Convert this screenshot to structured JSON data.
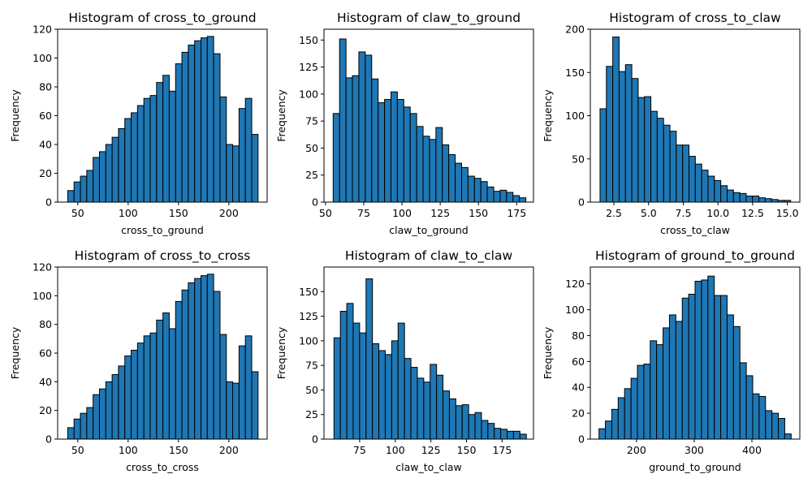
{
  "colors": {
    "bar_fill": "#1f77b4",
    "bar_edge": "#000000",
    "background": "#ffffff"
  },
  "chart_data": [
    {
      "type": "bar",
      "title": "Histogram of cross_to_ground",
      "xlabel": "cross_to_ground",
      "ylabel": "Frequency",
      "bin_start": 40,
      "bin_width": 6.3,
      "bins": 30,
      "values": [
        8,
        14,
        18,
        22,
        31,
        35,
        40,
        45,
        51,
        58,
        62,
        67,
        72,
        74,
        83,
        88,
        77,
        96,
        104,
        109,
        112,
        114,
        115,
        103,
        73,
        40,
        39,
        65,
        72,
        47
      ],
      "xlim": [
        30,
        238
      ],
      "ylim": [
        0,
        120
      ],
      "xticks": [
        50,
        100,
        150,
        200
      ],
      "yticks": [
        0,
        20,
        40,
        60,
        80,
        100,
        120
      ],
      "grid": false
    },
    {
      "type": "bar",
      "title": "Histogram of claw_to_ground",
      "xlabel": "claw_to_ground",
      "ylabel": "Frequency",
      "bin_start": 55,
      "bin_width": 4.2,
      "bins": 30,
      "values": [
        82,
        151,
        115,
        117,
        139,
        136,
        114,
        92,
        95,
        102,
        95,
        88,
        82,
        70,
        61,
        58,
        69,
        53,
        44,
        36,
        32,
        24,
        22,
        19,
        14,
        10,
        11,
        9,
        6,
        4
      ],
      "xlim": [
        49,
        186
      ],
      "ylim": [
        0,
        160
      ],
      "xticks": [
        50,
        75,
        100,
        125,
        150,
        175
      ],
      "yticks": [
        0,
        25,
        50,
        75,
        100,
        125,
        150
      ],
      "grid": false
    },
    {
      "type": "bar",
      "title": "Histogram of cross_to_claw",
      "xlabel": "cross_to_claw",
      "ylabel": "Frequency",
      "bin_start": 1.5,
      "bin_width": 0.458,
      "bins": 30,
      "values": [
        108,
        157,
        191,
        151,
        159,
        143,
        121,
        122,
        105,
        97,
        89,
        82,
        66,
        66,
        53,
        44,
        37,
        30,
        25,
        19,
        14,
        11,
        10,
        7,
        7,
        5,
        4,
        3,
        2,
        2
      ],
      "xlim": [
        0.8,
        15.9
      ],
      "ylim": [
        0,
        200
      ],
      "xticks": [
        2.5,
        5.0,
        7.5,
        10.0,
        12.5,
        15.0
      ],
      "yticks": [
        0,
        50,
        100,
        150,
        200
      ],
      "tick_format": "fixed1",
      "grid": false
    },
    {
      "type": "bar",
      "title": "Histogram of cross_to_cross",
      "xlabel": "cross_to_cross",
      "ylabel": "Frequency",
      "bin_start": 40,
      "bin_width": 6.3,
      "bins": 30,
      "values": [
        8,
        14,
        18,
        22,
        31,
        35,
        40,
        45,
        51,
        58,
        62,
        67,
        72,
        74,
        83,
        88,
        77,
        96,
        104,
        109,
        112,
        114,
        115,
        103,
        73,
        40,
        39,
        65,
        72,
        47
      ],
      "xlim": [
        30,
        238
      ],
      "ylim": [
        0,
        120
      ],
      "xticks": [
        50,
        100,
        150,
        200
      ],
      "yticks": [
        0,
        20,
        40,
        60,
        80,
        100,
        120
      ],
      "grid": false
    },
    {
      "type": "bar",
      "title": "Histogram of claw_to_claw",
      "xlabel": "claw_to_claw",
      "ylabel": "Frequency",
      "bin_start": 57,
      "bin_width": 4.5,
      "bins": 30,
      "values": [
        103,
        130,
        138,
        118,
        108,
        163,
        97,
        90,
        86,
        100,
        118,
        82,
        73,
        62,
        58,
        76,
        65,
        49,
        41,
        34,
        35,
        25,
        27,
        19,
        16,
        11,
        10,
        8,
        8,
        5
      ],
      "xlim": [
        50,
        197
      ],
      "ylim": [
        0,
        175
      ],
      "xticks": [
        75,
        100,
        125,
        150,
        175
      ],
      "yticks": [
        0,
        25,
        50,
        75,
        100,
        125,
        150
      ],
      "grid": false
    },
    {
      "type": "bar",
      "title": "Histogram of ground_to_ground",
      "xlabel": "ground_to_ground",
      "ylabel": "Frequency",
      "bin_start": 135,
      "bin_width": 11.1,
      "bins": 30,
      "values": [
        8,
        14,
        23,
        32,
        39,
        47,
        57,
        58,
        76,
        73,
        86,
        96,
        91,
        109,
        112,
        122,
        123,
        126,
        111,
        111,
        96,
        87,
        59,
        49,
        35,
        33,
        22,
        20,
        16,
        4
      ],
      "xlim": [
        120,
        483
      ],
      "ylim": [
        0,
        133
      ],
      "xticks": [
        200,
        300,
        400
      ],
      "yticks": [
        0,
        20,
        40,
        60,
        80,
        100,
        120
      ],
      "grid": false
    }
  ]
}
